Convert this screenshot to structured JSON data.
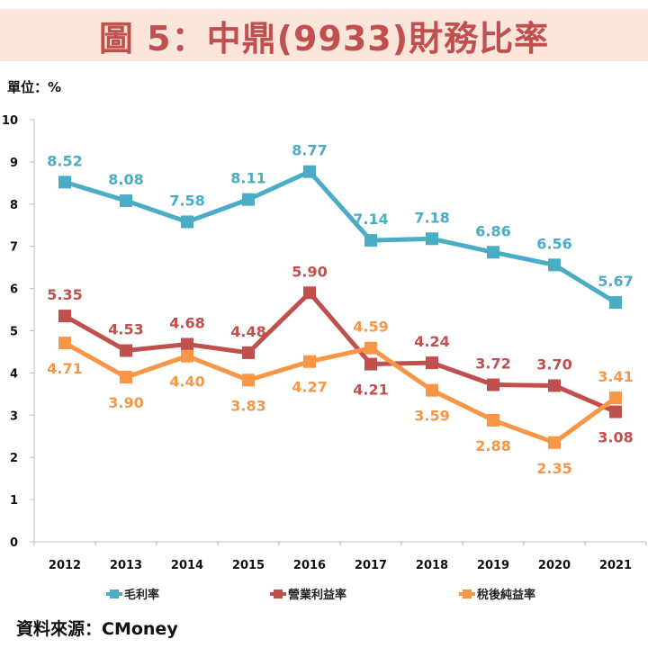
{
  "title": "圖 5：中鼎(9933)財務比率",
  "unit_label": "單位：%",
  "source": "資料來源：CMoney",
  "chart_data": {
    "type": "line",
    "title": "圖 5：中鼎(9933)財務比率",
    "xlabel": "",
    "ylabel": "單位：%",
    "categories": [
      "2012",
      "2013",
      "2014",
      "2015",
      "2016",
      "2017",
      "2018",
      "2019",
      "2020",
      "2021"
    ],
    "ylim": [
      0,
      10
    ],
    "yticks": [
      0,
      1,
      2,
      3,
      4,
      5,
      6,
      7,
      8,
      9,
      10
    ],
    "grid": false,
    "legend": "bottom",
    "series": [
      {
        "name": "毛利率",
        "color": "#4bacc6",
        "values": [
          8.52,
          8.08,
          7.58,
          8.11,
          8.77,
          7.14,
          7.18,
          6.86,
          6.56,
          5.67
        ],
        "labels": [
          "8.52",
          "8.08",
          "7.58",
          "8.11",
          "8.77",
          "7.14",
          "7.18",
          "6.86",
          "6.56",
          "5.67"
        ],
        "label_pos": [
          "above",
          "above",
          "above",
          "above",
          "above",
          "above",
          "above",
          "above",
          "above",
          "above"
        ]
      },
      {
        "name": "營業利益率",
        "color": "#c0504d",
        "values": [
          5.35,
          4.53,
          4.68,
          4.48,
          5.9,
          4.21,
          4.24,
          3.72,
          3.7,
          3.08
        ],
        "labels": [
          "5.35",
          "4.53",
          "4.68",
          "4.48",
          "5.90",
          "4.21",
          "4.24",
          "3.72",
          "3.70",
          "3.08"
        ],
        "label_pos": [
          "above",
          "above",
          "above",
          "above",
          "above",
          "below",
          "above",
          "above",
          "above",
          "below"
        ]
      },
      {
        "name": "稅後純益率",
        "color": "#f79646",
        "values": [
          4.71,
          3.9,
          4.4,
          3.83,
          4.27,
          4.59,
          3.59,
          2.88,
          2.35,
          3.41
        ],
        "labels": [
          "4.71",
          "3.90",
          "4.40",
          "3.83",
          "4.27",
          "4.59",
          "3.59",
          "2.88",
          "2.35",
          "3.41"
        ],
        "label_pos": [
          "below",
          "below",
          "below",
          "below",
          "below",
          "above",
          "below",
          "below",
          "below",
          "above"
        ]
      }
    ]
  }
}
